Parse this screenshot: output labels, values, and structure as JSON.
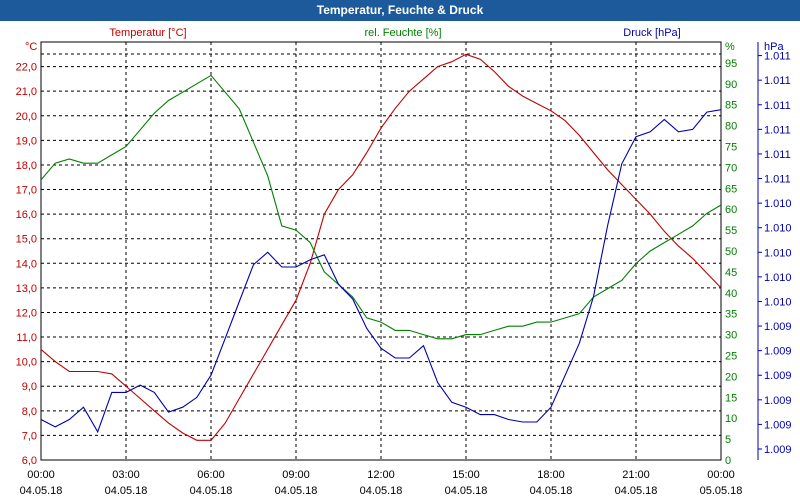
{
  "window": {
    "title": "Temperatur, Feuchte & Druck"
  },
  "colors": {
    "title_bar": "#1c5a9c",
    "temperature": "#c00000",
    "humidity": "#008000",
    "pressure": "#0000b0",
    "grid": "#000000"
  },
  "chart_data": {
    "type": "line",
    "title": "Temperatur, Feuchte & Druck",
    "x_ticks": [
      {
        "time": "00:00",
        "date": "04.05.18"
      },
      {
        "time": "03:00",
        "date": "04.05.18"
      },
      {
        "time": "06:00",
        "date": "04.05.18"
      },
      {
        "time": "09:00",
        "date": "04.05.18"
      },
      {
        "time": "12:00",
        "date": "04.05.18"
      },
      {
        "time": "15:00",
        "date": "04.05.18"
      },
      {
        "time": "18:00",
        "date": "04.05.18"
      },
      {
        "time": "21:00",
        "date": "04.05.18"
      },
      {
        "time": "00:00",
        "date": "05.05.18"
      }
    ],
    "xlim_hours": [
      0,
      24
    ],
    "axes": {
      "temperature": {
        "label": "Temperatur [°C]",
        "unit": "°C",
        "min": 6.0,
        "max": 23.0,
        "ticks": [
          "6,0",
          "7,0",
          "8,0",
          "9,0",
          "10,0",
          "11,0",
          "12,0",
          "13,0",
          "14,0",
          "15,0",
          "16,0",
          "17,0",
          "18,0",
          "19,0",
          "20,0",
          "21,0",
          "22,0"
        ]
      },
      "humidity": {
        "label": "rel. Feuchte [%]",
        "unit": "%",
        "min": 0,
        "max": 100,
        "ticks": [
          "0",
          "5",
          "10",
          "15",
          "20",
          "25",
          "30",
          "35",
          "40",
          "45",
          "50",
          "55",
          "60",
          "65",
          "70",
          "75",
          "80",
          "85",
          "90",
          "95"
        ]
      },
      "pressure": {
        "label": "Druck [hPa]",
        "unit": "hPa",
        "ticks": [
          "1.009",
          "1.009",
          "1.009",
          "1.009",
          "1.009",
          "1.009",
          "1.010",
          "1.010",
          "1.010",
          "1.010",
          "1.010",
          "1.011",
          "1.011",
          "1.011",
          "1.011",
          "1.011",
          "1.011"
        ]
      }
    },
    "series": [
      {
        "name": "Temperatur [°C]",
        "axis": "temperature",
        "color": "#c00000",
        "points": [
          [
            0,
            10.5
          ],
          [
            0.5,
            10
          ],
          [
            1,
            9.6
          ],
          [
            2,
            9.6
          ],
          [
            2.5,
            9.5
          ],
          [
            3,
            9
          ],
          [
            3.5,
            8.5
          ],
          [
            4,
            8
          ],
          [
            4.5,
            7.5
          ],
          [
            5,
            7.1
          ],
          [
            5.5,
            6.8
          ],
          [
            6,
            6.8
          ],
          [
            6.5,
            7.5
          ],
          [
            7,
            8.5
          ],
          [
            7.5,
            9.5
          ],
          [
            8,
            10.5
          ],
          [
            8.5,
            11.5
          ],
          [
            9,
            12.5
          ],
          [
            9.5,
            14
          ],
          [
            10,
            16
          ],
          [
            10.5,
            17
          ],
          [
            11,
            17.6
          ],
          [
            11.5,
            18.5
          ],
          [
            12,
            19.5
          ],
          [
            12.5,
            20.3
          ],
          [
            13,
            21
          ],
          [
            13.5,
            21.5
          ],
          [
            14,
            22
          ],
          [
            14.5,
            22.2
          ],
          [
            15,
            22.5
          ],
          [
            15.5,
            22.3
          ],
          [
            16,
            21.8
          ],
          [
            16.5,
            21.2
          ],
          [
            17,
            20.8
          ],
          [
            17.5,
            20.5
          ],
          [
            18,
            20.2
          ],
          [
            18.5,
            19.8
          ],
          [
            19,
            19.2
          ],
          [
            19.5,
            18.5
          ],
          [
            20,
            17.8
          ],
          [
            20.5,
            17.2
          ],
          [
            21,
            16.6
          ],
          [
            21.5,
            16
          ],
          [
            22,
            15.3
          ],
          [
            22.5,
            14.7
          ],
          [
            23,
            14.2
          ],
          [
            23.5,
            13.6
          ],
          [
            24,
            13
          ]
        ]
      },
      {
        "name": "rel. Feuchte [%]",
        "axis": "humidity",
        "color": "#008000",
        "points": [
          [
            0,
            67
          ],
          [
            0.5,
            71
          ],
          [
            1,
            72
          ],
          [
            1.5,
            71
          ],
          [
            2,
            71
          ],
          [
            2.5,
            73
          ],
          [
            3,
            75
          ],
          [
            3.5,
            79
          ],
          [
            4,
            83
          ],
          [
            4.5,
            86
          ],
          [
            5,
            88
          ],
          [
            5.5,
            90
          ],
          [
            6,
            92
          ],
          [
            6.5,
            88
          ],
          [
            7,
            84
          ],
          [
            7.5,
            76
          ],
          [
            8,
            68
          ],
          [
            8.5,
            56
          ],
          [
            9,
            55
          ],
          [
            9.5,
            52
          ],
          [
            10,
            45
          ],
          [
            10.5,
            42
          ],
          [
            11,
            39
          ],
          [
            11.5,
            34
          ],
          [
            12,
            33
          ],
          [
            12.5,
            31
          ],
          [
            13,
            31
          ],
          [
            13.5,
            30
          ],
          [
            14,
            29
          ],
          [
            14.5,
            29
          ],
          [
            15,
            30
          ],
          [
            15.5,
            30
          ],
          [
            16,
            31
          ],
          [
            16.5,
            32
          ],
          [
            17,
            32
          ],
          [
            17.5,
            33
          ],
          [
            18,
            33
          ],
          [
            18.5,
            34
          ],
          [
            19,
            35
          ],
          [
            19.5,
            39
          ],
          [
            20,
            41
          ],
          [
            20.5,
            43
          ],
          [
            21,
            47
          ],
          [
            21.5,
            50
          ],
          [
            22,
            52
          ],
          [
            22.5,
            54
          ],
          [
            23,
            56
          ],
          [
            23.5,
            59
          ],
          [
            24,
            61
          ]
        ]
      },
      {
        "name": "Druck [hPa]",
        "axis": "pressure",
        "color": "#0000b0",
        "unit_note": "values in axis-tick index units (0..16)",
        "points": [
          [
            0,
            1.2
          ],
          [
            0.5,
            0.9
          ],
          [
            1,
            1.2
          ],
          [
            1.5,
            1.7
          ],
          [
            2,
            0.7
          ],
          [
            2.5,
            2.3
          ],
          [
            3,
            2.3
          ],
          [
            3.5,
            2.6
          ],
          [
            4,
            2.3
          ],
          [
            4.5,
            1.5
          ],
          [
            5,
            1.7
          ],
          [
            5.5,
            2.1
          ],
          [
            6,
            3.0
          ],
          [
            6.5,
            4.5
          ],
          [
            7,
            6.0
          ],
          [
            7.5,
            7.5
          ],
          [
            8,
            8.0
          ],
          [
            8.5,
            7.4
          ],
          [
            9,
            7.4
          ],
          [
            9.5,
            7.7
          ],
          [
            10,
            7.9
          ],
          [
            10.5,
            6.7
          ],
          [
            11,
            6.1
          ],
          [
            11.5,
            4.9
          ],
          [
            12,
            4.1
          ],
          [
            12.5,
            3.7
          ],
          [
            13,
            3.7
          ],
          [
            13.5,
            4.2
          ],
          [
            14,
            2.7
          ],
          [
            14.5,
            1.9
          ],
          [
            15,
            1.7
          ],
          [
            15.5,
            1.4
          ],
          [
            16,
            1.4
          ],
          [
            16.5,
            1.2
          ],
          [
            17,
            1.1
          ],
          [
            17.5,
            1.1
          ],
          [
            18,
            1.7
          ],
          [
            18.5,
            3.0
          ],
          [
            19,
            4.3
          ],
          [
            19.5,
            6.2
          ],
          [
            20,
            9.1
          ],
          [
            20.5,
            11.6
          ],
          [
            21,
            12.7
          ],
          [
            21.5,
            12.9
          ],
          [
            22,
            13.4
          ],
          [
            22.5,
            12.9
          ],
          [
            23,
            13.0
          ],
          [
            23.5,
            13.7
          ],
          [
            24,
            13.8
          ]
        ]
      }
    ]
  }
}
